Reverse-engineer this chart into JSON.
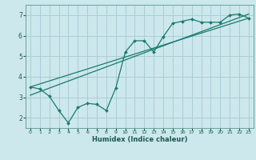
{
  "title": "",
  "xlabel": "Humidex (Indice chaleur)",
  "bg_color": "#cce8ec",
  "grid_color": "#aacdd4",
  "line_color": "#1a7a6e",
  "xlim": [
    -0.5,
    23.5
  ],
  "ylim": [
    1.5,
    7.5
  ],
  "xticks": [
    0,
    1,
    2,
    3,
    4,
    5,
    6,
    7,
    8,
    9,
    10,
    11,
    12,
    13,
    14,
    15,
    16,
    17,
    18,
    19,
    20,
    21,
    22,
    23
  ],
  "yticks": [
    2,
    3,
    4,
    5,
    6,
    7
  ],
  "series1_x": [
    0,
    1,
    2,
    3,
    4,
    5,
    6,
    7,
    8,
    9,
    10,
    11,
    12,
    13,
    14,
    15,
    16,
    17,
    18,
    19,
    20,
    21,
    22,
    23
  ],
  "series1_y": [
    3.5,
    3.4,
    3.05,
    2.35,
    1.75,
    2.5,
    2.7,
    2.65,
    2.35,
    3.45,
    5.2,
    5.75,
    5.75,
    5.2,
    5.95,
    6.6,
    6.7,
    6.8,
    6.65,
    6.65,
    6.65,
    7.0,
    7.05,
    6.85
  ],
  "series2_x": [
    0,
    23
  ],
  "series2_y": [
    3.5,
    6.85
  ],
  "series3_x": [
    0,
    23
  ],
  "series3_y": [
    3.1,
    7.05
  ],
  "spine_color": "#5a9a8a",
  "tick_color": "#1a5a50"
}
